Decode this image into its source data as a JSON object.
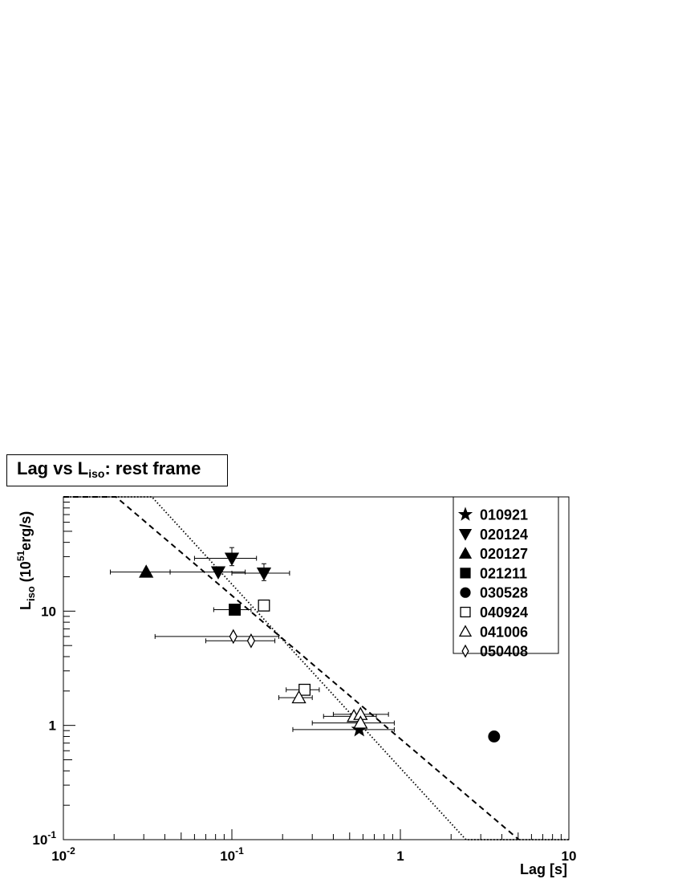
{
  "chart_data": {
    "type": "scatter",
    "title": {
      "prefix": "Lag vs L",
      "sub": "iso",
      "suffix": ": rest frame"
    },
    "xlabel": "Lag [s]",
    "ylabel": {
      "main": "L",
      "sub": "iso",
      "unit_open": " (10",
      "unit_sup": "51",
      "unit_close": "erg/s)"
    },
    "x_scale": "log",
    "y_scale": "log",
    "xlim": [
      0.01,
      10
    ],
    "ylim": [
      0.1,
      100
    ],
    "x_tick_labels": [
      {
        "value": 0.01,
        "base": "10",
        "exp": "-2"
      },
      {
        "value": 0.1,
        "base": "10",
        "exp": "-1"
      },
      {
        "value": 1,
        "base": "1",
        "exp": ""
      },
      {
        "value": 10,
        "base": "10",
        "exp": ""
      }
    ],
    "y_tick_labels": [
      {
        "value": 0.1,
        "base": "10",
        "exp": "-1"
      },
      {
        "value": 1,
        "base": "1",
        "exp": ""
      },
      {
        "value": 10,
        "base": "10",
        "exp": ""
      }
    ],
    "grid": false,
    "legend_position": "top-right",
    "series": [
      {
        "name": "010921",
        "marker": "star",
        "filled": true,
        "points": [
          {
            "x": 0.57,
            "y": 0.92,
            "xerr": [
              0.23,
              0.92
            ]
          }
        ]
      },
      {
        "name": "020124",
        "marker": "triangle-down",
        "filled": true,
        "points": [
          {
            "x": 0.1,
            "y": 29,
            "xerr": [
              0.06,
              0.14
            ],
            "yerr": [
              25,
              36
            ]
          },
          {
            "x": 0.083,
            "y": 22,
            "xerr": [
              0.043,
              0.12
            ]
          },
          {
            "x": 0.155,
            "y": 21.5,
            "xerr": [
              0.1,
              0.22
            ],
            "yerr": [
              18.5,
              26
            ]
          }
        ]
      },
      {
        "name": "020127",
        "marker": "triangle-up",
        "filled": true,
        "points": [
          {
            "x": 0.031,
            "y": 22,
            "xerr": [
              0.019,
              0.043
            ]
          }
        ]
      },
      {
        "name": "021211",
        "marker": "square",
        "filled": true,
        "points": [
          {
            "x": 0.104,
            "y": 10.3,
            "xerr": [
              0.078,
              0.13
            ]
          }
        ]
      },
      {
        "name": "030528",
        "marker": "circle",
        "filled": true,
        "points": [
          {
            "x": 3.6,
            "y": 0.8
          }
        ]
      },
      {
        "name": "040924",
        "marker": "square",
        "filled": false,
        "points": [
          {
            "x": 0.155,
            "y": 11.2
          },
          {
            "x": 0.27,
            "y": 2.05,
            "xerr": [
              0.21,
              0.33
            ]
          }
        ]
      },
      {
        "name": "041006",
        "marker": "triangle-up",
        "filled": false,
        "points": [
          {
            "x": 0.25,
            "y": 1.75,
            "xerr": [
              0.19,
              0.3
            ]
          },
          {
            "x": 0.53,
            "y": 1.2,
            "xerr": [
              0.35,
              0.72
            ]
          },
          {
            "x": 0.58,
            "y": 1.25,
            "xerr": [
              0.4,
              0.85
            ]
          },
          {
            "x": 0.58,
            "y": 1.05,
            "xerr": [
              0.3,
              0.92
            ]
          }
        ]
      },
      {
        "name": "050408",
        "marker": "diamond",
        "filled": false,
        "points": [
          {
            "x": 0.102,
            "y": 6,
            "xerr": [
              0.035,
              0.19
            ]
          },
          {
            "x": 0.13,
            "y": 5.5,
            "xerr": [
              0.07,
              0.18
            ]
          }
        ]
      }
    ],
    "fit_lines": [
      {
        "style": "dashed",
        "points": [
          [
            0.01,
            100
          ],
          [
            0.0205,
            100
          ],
          [
            5.05,
            0.1
          ]
        ]
      },
      {
        "style": "dotted",
        "points": [
          [
            0.01,
            100
          ],
          [
            0.0335,
            100
          ],
          [
            2.45,
            0.1
          ],
          [
            10,
            0.1
          ]
        ]
      }
    ]
  }
}
